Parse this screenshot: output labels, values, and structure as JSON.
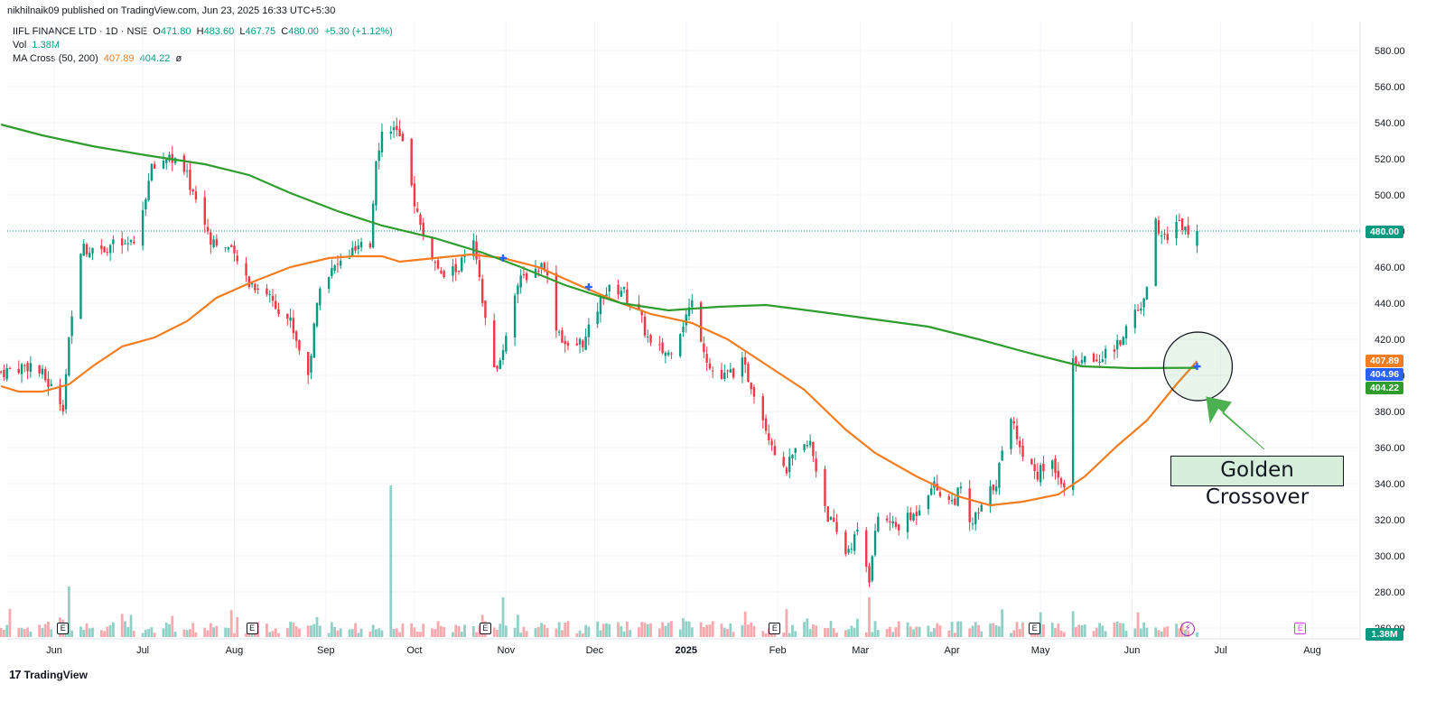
{
  "header": {
    "publisher": "nikhilnaik09 published on TradingView.com, Jun 23, 2025 16:33 UTC+5:30"
  },
  "legend": {
    "symbol": "IIFL FINANCE LTD · 1D · NSE",
    "o_label": "O",
    "o": "471.80",
    "h_label": "H",
    "h": "483.60",
    "l_label": "L",
    "l": "467.75",
    "c_label": "C",
    "c": "480.00",
    "change": "+5.30 (+1.12%)",
    "vol_label": "Vol",
    "vol": "1.38M",
    "ma_label": "MA Cross (50, 200)",
    "ma_fast": "407.89",
    "ma_slow": "404.22",
    "ma_extra": "ø"
  },
  "annotation": {
    "text": "Golden Crossover"
  },
  "footer": {
    "brand": "TradingView",
    "logo": "17"
  },
  "colors": {
    "up": "#089981",
    "down": "#f23645",
    "ma_fast": "#f57c1f",
    "ma_slow": "#2e9d2e",
    "vol_up": "#8fd1c6",
    "vol_down": "#f7a9ae",
    "price_tag": "#089981",
    "marker": "#2962ff"
  },
  "price_tags": {
    "last": "480.00",
    "ma_fast": "407.89",
    "marker": "404.96",
    "ma_slow": "404.22",
    "volume": "1.38M"
  },
  "events": {
    "earnings": "E",
    "dividend": "⚡"
  },
  "chart_data": {
    "type": "candlestick",
    "ylim": [
      260,
      590
    ],
    "y_ticks": [
      260,
      280,
      300,
      320,
      340,
      360,
      380,
      400,
      420,
      440,
      460,
      480,
      500,
      520,
      540,
      560,
      580
    ],
    "y_tick_labels": [
      "260.00",
      "280.00",
      "300.00",
      "320.00",
      "340.00",
      "360.00",
      "380.00",
      "400.00",
      "420.00",
      "440.00",
      "460.00",
      "480.00",
      "500.00",
      "520.00",
      "540.00",
      "560.00",
      "580.00"
    ],
    "x_tick_labels": [
      "Jun",
      "Jul",
      "Aug",
      "Sep",
      "Oct",
      "Nov",
      "Dec",
      "2025",
      "Feb",
      "Mar",
      "Apr",
      "May",
      "Jun",
      "Jul",
      "Aug"
    ],
    "x_tick_dates": [
      "2024-06-01",
      "2024-07-01",
      "2024-08-01",
      "2024-09-01",
      "2024-10-01",
      "2024-11-01",
      "2024-12-01",
      "2025-01-01",
      "2025-02-01",
      "2025-03-01",
      "2025-04-01",
      "2025-05-01",
      "2025-06-01",
      "2025-07-01",
      "2025-08-01"
    ],
    "first_date": "2024-05-14",
    "last_date": "2025-06-23",
    "close_anchors": [
      [
        "2024-05-14",
        402
      ],
      [
        "2024-05-24",
        406
      ],
      [
        "2024-05-28",
        400
      ],
      [
        "2024-06-04",
        384
      ],
      [
        "2024-06-06",
        418
      ],
      [
        "2024-06-10",
        470
      ],
      [
        "2024-06-20",
        472
      ],
      [
        "2024-06-28",
        472
      ],
      [
        "2024-07-04",
        514
      ],
      [
        "2024-07-10",
        522
      ],
      [
        "2024-07-16",
        510
      ],
      [
        "2024-07-24",
        476
      ],
      [
        "2024-07-30",
        470
      ],
      [
        "2024-08-06",
        452
      ],
      [
        "2024-08-12",
        446
      ],
      [
        "2024-08-20",
        430
      ],
      [
        "2024-08-26",
        400
      ],
      [
        "2024-08-30",
        452
      ],
      [
        "2024-09-10",
        468
      ],
      [
        "2024-09-16",
        472
      ],
      [
        "2024-09-18",
        522
      ],
      [
        "2024-09-20",
        534
      ],
      [
        "2024-09-24",
        540
      ],
      [
        "2024-09-27",
        526
      ],
      [
        "2024-10-03",
        482
      ],
      [
        "2024-10-10",
        454
      ],
      [
        "2024-10-16",
        460
      ],
      [
        "2024-10-21",
        472
      ],
      [
        "2024-10-25",
        430
      ],
      [
        "2024-10-29",
        400
      ],
      [
        "2024-11-04",
        448
      ],
      [
        "2024-11-08",
        456
      ],
      [
        "2024-11-14",
        462
      ],
      [
        "2024-11-18",
        428
      ],
      [
        "2024-11-22",
        414
      ],
      [
        "2024-11-28",
        420
      ],
      [
        "2024-12-04",
        446
      ],
      [
        "2024-12-10",
        448
      ],
      [
        "2024-12-16",
        434
      ],
      [
        "2024-12-20",
        416
      ],
      [
        "2024-12-26",
        412
      ],
      [
        "2025-01-03",
        440
      ],
      [
        "2025-01-09",
        404
      ],
      [
        "2025-01-13",
        398
      ],
      [
        "2025-01-20",
        406
      ],
      [
        "2025-01-24",
        392
      ],
      [
        "2025-01-28",
        372
      ],
      [
        "2025-02-03",
        346
      ],
      [
        "2025-02-07",
        356
      ],
      [
        "2025-02-12",
        362
      ],
      [
        "2025-02-18",
        322
      ],
      [
        "2025-02-24",
        302
      ],
      [
        "2025-02-28",
        312
      ],
      [
        "2025-03-04",
        288
      ],
      [
        "2025-03-07",
        322
      ],
      [
        "2025-03-13",
        316
      ],
      [
        "2025-03-19",
        322
      ],
      [
        "2025-03-25",
        340
      ],
      [
        "2025-04-01",
        330
      ],
      [
        "2025-04-04",
        336
      ],
      [
        "2025-04-07",
        316
      ],
      [
        "2025-04-11",
        326
      ],
      [
        "2025-04-16",
        342
      ],
      [
        "2025-04-21",
        378
      ],
      [
        "2025-04-25",
        356
      ],
      [
        "2025-04-30",
        346
      ],
      [
        "2025-05-05",
        352
      ],
      [
        "2025-05-09",
        340
      ],
      [
        "2025-05-12",
        406
      ],
      [
        "2025-05-20",
        410
      ],
      [
        "2025-05-27",
        416
      ],
      [
        "2025-06-02",
        436
      ],
      [
        "2025-06-05",
        440
      ],
      [
        "2025-06-09",
        484
      ],
      [
        "2025-06-13",
        478
      ],
      [
        "2025-06-17",
        484
      ],
      [
        "2025-06-23",
        480
      ]
    ],
    "last_candle": {
      "date": "2025-06-23",
      "open": 471.8,
      "high": 483.6,
      "low": 467.75,
      "close": 480.0
    },
    "volume_spikes": [
      [
        "2024-09-23",
        339
      ],
      [
        "2024-06-06",
        283
      ],
      [
        "2024-10-31",
        277
      ],
      [
        "2025-03-04",
        277
      ]
    ],
    "series": [
      {
        "name": "MA Cross (50, 200) fast",
        "value_last": 407.89,
        "points": [
          [
            "2024-05-14",
            394
          ],
          [
            "2024-05-20",
            391
          ],
          [
            "2024-05-28",
            391
          ],
          [
            "2024-06-06",
            395
          ],
          [
            "2024-06-14",
            405
          ],
          [
            "2024-06-24",
            416
          ],
          [
            "2024-07-05",
            421
          ],
          [
            "2024-07-16",
            430
          ],
          [
            "2024-07-26",
            443
          ],
          [
            "2024-08-06",
            451
          ],
          [
            "2024-08-20",
            460
          ],
          [
            "2024-09-02",
            465
          ],
          [
            "2024-09-10",
            466
          ],
          [
            "2024-09-20",
            466
          ],
          [
            "2024-09-26",
            463
          ],
          [
            "2024-10-08",
            465
          ],
          [
            "2024-10-20",
            467
          ],
          [
            "2024-10-31",
            465
          ],
          [
            "2024-11-12",
            460
          ],
          [
            "2024-11-27",
            449
          ],
          [
            "2024-12-10",
            440
          ],
          [
            "2024-12-20",
            434
          ],
          [
            "2025-01-03",
            429
          ],
          [
            "2025-01-15",
            420
          ],
          [
            "2025-01-28",
            406
          ],
          [
            "2025-02-10",
            392
          ],
          [
            "2025-02-24",
            370
          ],
          [
            "2025-03-06",
            357
          ],
          [
            "2025-03-20",
            344
          ],
          [
            "2025-04-03",
            333
          ],
          [
            "2025-04-14",
            328
          ],
          [
            "2025-04-25",
            330
          ],
          [
            "2025-05-07",
            334
          ],
          [
            "2025-05-16",
            344
          ],
          [
            "2025-05-27",
            361
          ],
          [
            "2025-06-06",
            375
          ],
          [
            "2025-06-16",
            395
          ],
          [
            "2025-06-23",
            407.89
          ]
        ]
      },
      {
        "name": "MA Cross (50, 200) slow",
        "value_last": 404.22,
        "points": [
          [
            "2024-05-14",
            539
          ],
          [
            "2024-05-28",
            533
          ],
          [
            "2024-06-14",
            527
          ],
          [
            "2024-07-02",
            522
          ],
          [
            "2024-07-22",
            517
          ],
          [
            "2024-08-06",
            511
          ],
          [
            "2024-08-20",
            501
          ],
          [
            "2024-09-05",
            491
          ],
          [
            "2024-09-20",
            483
          ],
          [
            "2024-10-08",
            476
          ],
          [
            "2024-10-24",
            468
          ],
          [
            "2024-11-06",
            460
          ],
          [
            "2024-11-21",
            450
          ],
          [
            "2024-12-10",
            440
          ],
          [
            "2024-12-26",
            436
          ],
          [
            "2025-01-12",
            438
          ],
          [
            "2025-01-28",
            439
          ],
          [
            "2025-02-16",
            435
          ],
          [
            "2025-03-06",
            431
          ],
          [
            "2025-03-24",
            427
          ],
          [
            "2025-04-10",
            420
          ],
          [
            "2025-04-28",
            412
          ],
          [
            "2025-05-15",
            405
          ],
          [
            "2025-06-01",
            404
          ],
          [
            "2025-06-23",
            404.22
          ]
        ]
      }
    ],
    "crossover_markers": [
      [
        "2024-10-31",
        465
      ],
      [
        "2024-11-29",
        449
      ],
      [
        "2025-06-23",
        404.96
      ]
    ],
    "earnings_dates": [
      "2024-06-04",
      "2024-08-07",
      "2024-10-25",
      "2025-01-31",
      "2025-04-29"
    ],
    "future_earnings_date": "2025-07-28",
    "dividend_date": "2025-06-23"
  }
}
